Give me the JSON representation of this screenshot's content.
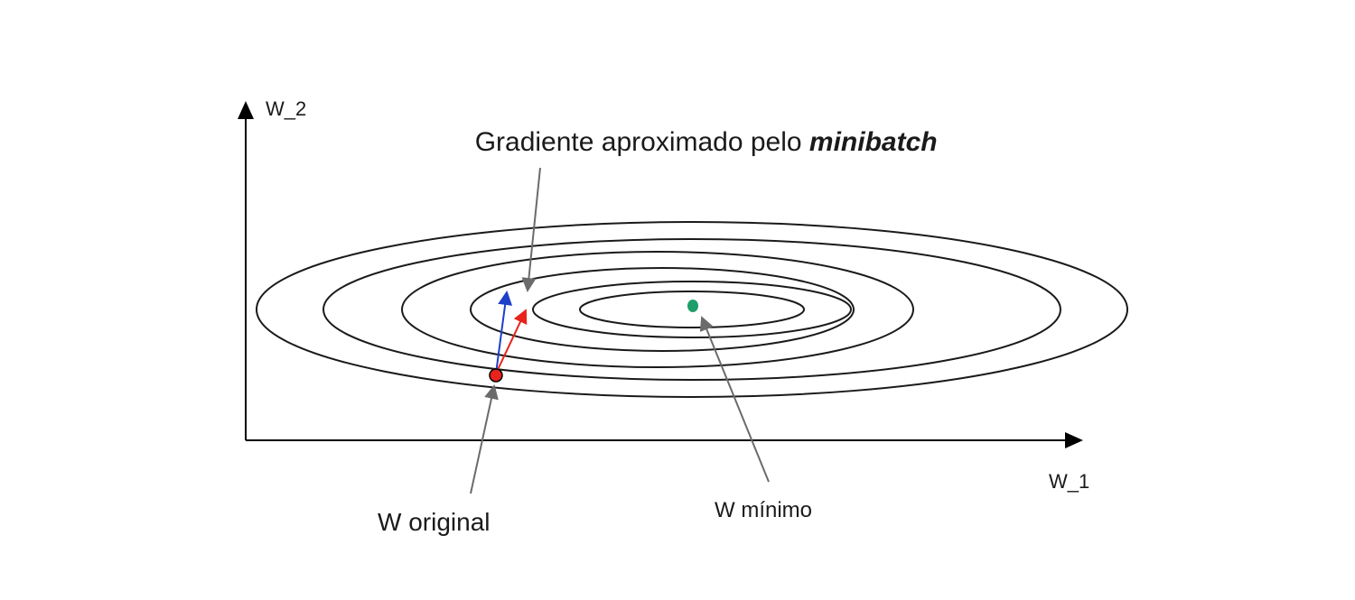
{
  "axes": {
    "x_label": "W_1",
    "y_label": "W_2"
  },
  "labels": {
    "title_prefix": "Gradiente aproximado pelo ",
    "title_emphasis": "minibatch",
    "original": "W original",
    "minimum": "W mínimo"
  },
  "colors": {
    "axis": "#000000",
    "contour": "#1a1a1a",
    "pointer": "#6b6b6b",
    "true_gradient": "#1f3fc8",
    "minibatch_gradient": "#e8231b",
    "original_point": "#e8231b",
    "minimum_point": "#1e9e6a"
  }
}
